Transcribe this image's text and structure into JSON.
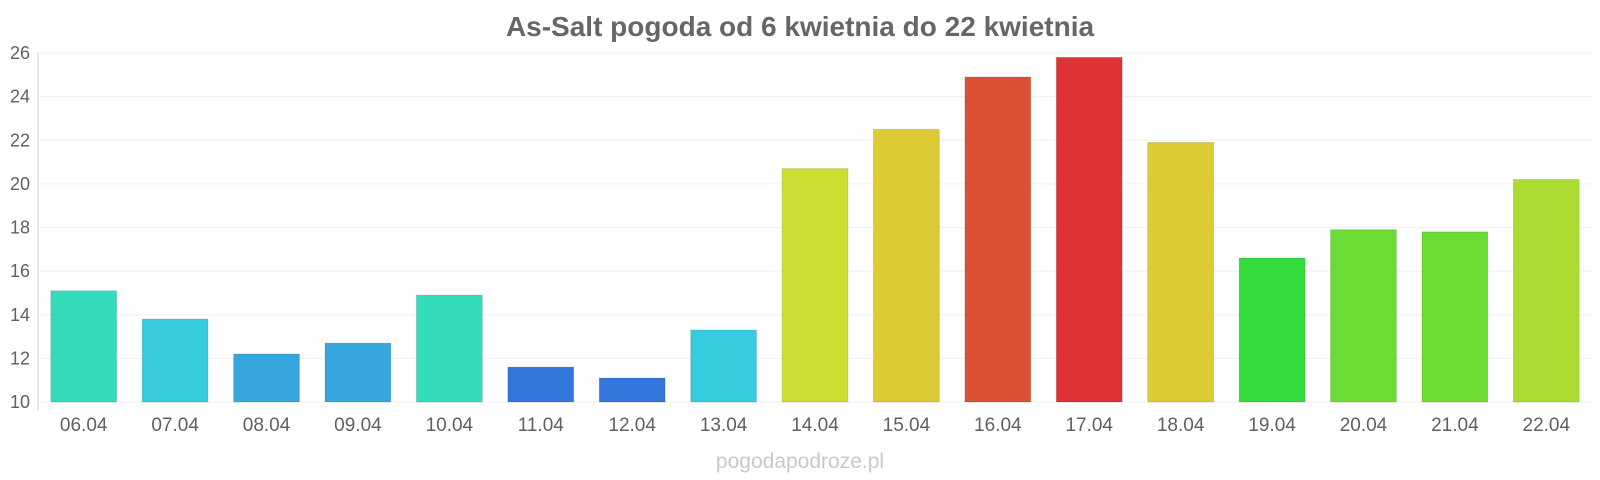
{
  "chart_data": {
    "type": "bar",
    "title": "As-Salt pogoda od 6 kwietnia do 22 kwietnia",
    "xlabel": "",
    "ylabel": "",
    "ylim": [
      10,
      26
    ],
    "yticks": [
      10,
      12,
      14,
      16,
      18,
      20,
      22,
      24,
      26
    ],
    "grid": true,
    "legend": "none",
    "categories": [
      "06.04",
      "07.04",
      "08.04",
      "09.04",
      "10.04",
      "11.04",
      "12.04",
      "13.04",
      "14.04",
      "15.04",
      "16.04",
      "17.04",
      "18.04",
      "19.04",
      "20.04",
      "21.04",
      "22.04"
    ],
    "values": [
      15.1,
      13.8,
      12.2,
      12.7,
      14.9,
      11.6,
      11.1,
      13.3,
      20.7,
      22.5,
      24.9,
      25.8,
      21.9,
      16.6,
      17.9,
      17.8,
      20.2
    ],
    "colors": [
      "#34dcbb",
      "#37cbe0",
      "#37a6dc",
      "#37a6dc",
      "#34dcbb",
      "#3376dc",
      "#3376dc",
      "#37cbe0",
      "#cedc34",
      "#dccb34",
      "#dc5134",
      "#dc3434",
      "#dccb34",
      "#33dc3b",
      "#6adc34",
      "#6adc34",
      "#acdc34"
    ]
  },
  "credit": "pogodapodroze.pl"
}
